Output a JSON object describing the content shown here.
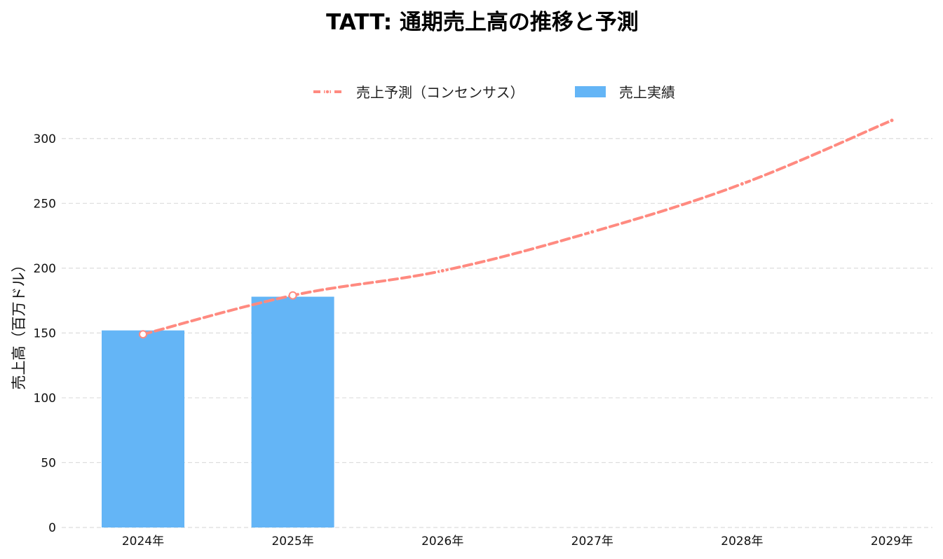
{
  "chart_data": {
    "type": "bar",
    "title": "TATT: 通期売上高の推移と予測",
    "xlabel": "",
    "ylabel": "売上高（百万ドル）",
    "categories": [
      "2024年",
      "2025年",
      "2026年",
      "2027年",
      "2028年",
      "2029年"
    ],
    "ylim": [
      0,
      315
    ],
    "yticks": [
      0,
      50,
      100,
      150,
      200,
      250,
      300
    ],
    "grid": true,
    "grid_axis": "y",
    "legend_position": "top-center",
    "series": [
      {
        "name": "売上予測（コンセンサス）",
        "kind": "line",
        "style": "dashed",
        "color": "#FF8A80",
        "values": [
          149,
          179,
          198,
          228,
          265,
          314
        ]
      },
      {
        "name": "売上実績",
        "kind": "bar",
        "color": "#64B5F6",
        "values": [
          152,
          178,
          null,
          null,
          null,
          null
        ]
      }
    ]
  }
}
